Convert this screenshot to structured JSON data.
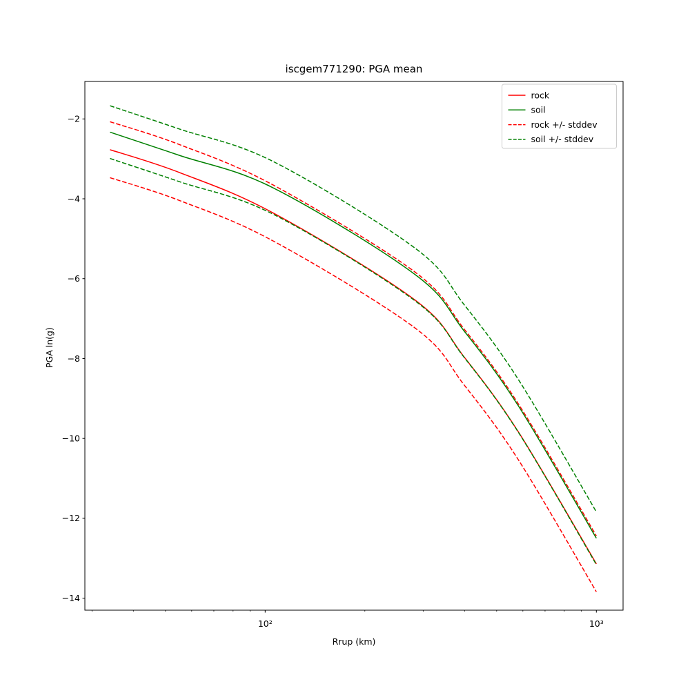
{
  "figure": {
    "title": "iscgem771290: PGA mean",
    "xlabel": "Rrup (km)",
    "ylabel": "PGA ln(g)"
  },
  "chart_data": {
    "type": "line",
    "title": "iscgem771290: PGA mean",
    "xlabel": "Rrup (km)",
    "ylabel": "PGA ln(g)",
    "x_scale": "log10",
    "xlim_km": [
      28.5,
      1200
    ],
    "ylim": [
      -14.3,
      -1.06
    ],
    "grid": false,
    "legend_position": "upper right",
    "stddev": {
      "rock": 0.7,
      "soil": 0.66
    },
    "x_km": [
      34,
      55,
      106,
      284,
      398,
      583,
      1000
    ],
    "series": [
      {
        "name": "rock",
        "label": "rock",
        "color": "#ff0000",
        "style": "solid",
        "values": [
          -2.77,
          -3.34,
          -4.36,
          -6.54,
          -7.95,
          -9.85,
          -13.14
        ]
      },
      {
        "name": "soil",
        "label": "soil",
        "color": "#008000",
        "style": "solid",
        "values": [
          -2.33,
          -2.91,
          -3.73,
          -5.9,
          -7.3,
          -9.2,
          -12.5
        ]
      },
      {
        "name": "rock_plus_std",
        "label": "rock +/- stddev",
        "color": "#ff0000",
        "style": "dashed",
        "values": [
          -2.07,
          -2.64,
          -3.66,
          -5.84,
          -7.25,
          -9.15,
          -12.44
        ]
      },
      {
        "name": "rock_minus_std",
        "label": "rock +/- stddev",
        "color": "#ff0000",
        "style": "dashed",
        "values": [
          -3.47,
          -4.04,
          -5.06,
          -7.24,
          -8.65,
          -10.55,
          -13.84
        ]
      },
      {
        "name": "soil_plus_std",
        "label": "soil +/- stddev",
        "color": "#008000",
        "style": "dashed",
        "values": [
          -1.67,
          -2.25,
          -3.07,
          -5.24,
          -6.64,
          -8.54,
          -11.84
        ]
      },
      {
        "name": "soil_minus_std",
        "label": "soil +/- stddev",
        "color": "#008000",
        "style": "dashed",
        "values": [
          -2.99,
          -3.57,
          -4.39,
          -6.56,
          -7.96,
          -9.86,
          -13.16
        ]
      }
    ],
    "legend_entries": [
      {
        "label": "rock",
        "color": "#ff0000",
        "style": "solid"
      },
      {
        "label": "soil",
        "color": "#008000",
        "style": "solid"
      },
      {
        "label": "rock +/- stddev",
        "color": "#ff0000",
        "style": "dashed"
      },
      {
        "label": "soil +/- stddev",
        "color": "#008000",
        "style": "dashed"
      }
    ],
    "yticks": [
      {
        "value": -2,
        "label": "−2"
      },
      {
        "value": -4,
        "label": "−4"
      },
      {
        "value": -6,
        "label": "−6"
      },
      {
        "value": -8,
        "label": "−8"
      },
      {
        "value": -10,
        "label": "−10"
      },
      {
        "value": -12,
        "label": "−12"
      },
      {
        "value": -14,
        "label": "−14"
      }
    ],
    "xticks_major": [
      {
        "value": 100,
        "label": "10²"
      },
      {
        "value": 1000,
        "label": "10³"
      }
    ],
    "xticks_minor_km": [
      30,
      40,
      50,
      60,
      70,
      80,
      90,
      200,
      300,
      400,
      500,
      600,
      700,
      800,
      900
    ]
  }
}
